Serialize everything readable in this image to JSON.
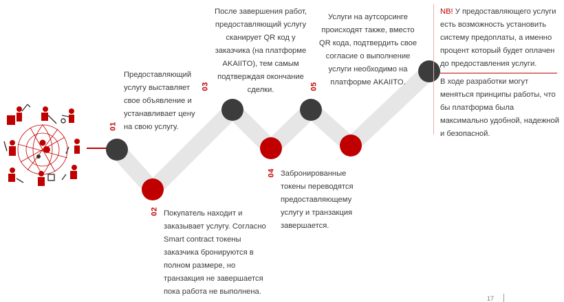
{
  "steps": [
    {
      "number": "01",
      "text": "Предоставляющий услугу выставляет свое объявление и устанавливает цену на свою услугу."
    },
    {
      "number": "02",
      "text": "Покупатель находит и заказывает услугу. Согласно Smart contract токены заказчика бронируются в полном размере, но транзакция не завершается пока работа не выполнена."
    },
    {
      "number": "03",
      "text": "После завершения работ, предоставляющий услугу сканирует QR код у заказчика (на платформе AKAIITO), тем самым подтверждая окончание сделки."
    },
    {
      "number": "04",
      "text": "Забронированные токены переводятся предоставляющему услугу и транзакция завершается."
    },
    {
      "number": "05",
      "text": "Услуги на аутсорсинге происходят также, вместо QR кода, подтвердить свое согласие о выполнение услуги необходимо на платформе AKAIITO."
    }
  ],
  "note": {
    "nb_label": "NB!",
    "nb_text": " У предоставляющего услуги есть возможность установить систему предоплаты, а именно процент который будет оплачен до предоставления услуги.",
    "text2": "В ходе разработки могут меняться принципы работы, что бы платформа была максимально удобной, надежной и безопасной."
  },
  "page_number": "17",
  "colors": {
    "accent": "#c00000",
    "dark": "#3c3c3c",
    "band": "#e6e6e6"
  }
}
